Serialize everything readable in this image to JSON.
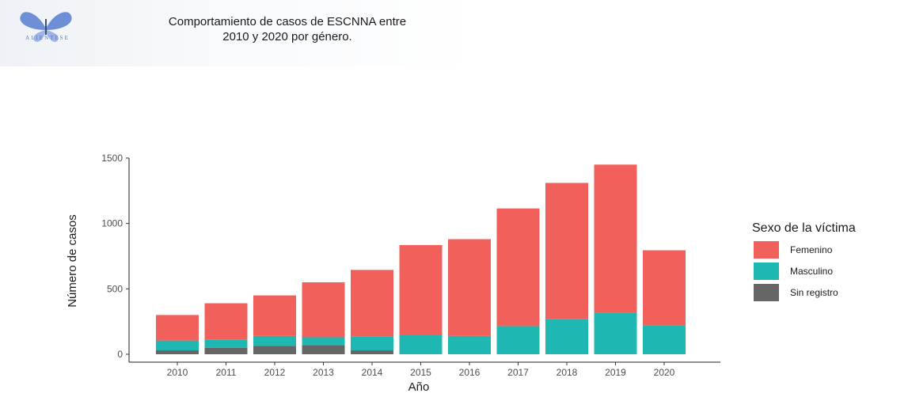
{
  "chart_data": {
    "type": "bar",
    "stacked": true,
    "title": [
      "Comportamiento de casos de ESCNNA entre",
      "2010 y 2020 por género."
    ],
    "xlabel": "Año",
    "ylabel": "Número de casos",
    "ylim": [
      0,
      1560
    ],
    "yticks": [
      0,
      500,
      1000,
      1500
    ],
    "categories": [
      "2010",
      "2011",
      "2012",
      "2013",
      "2014",
      "2015",
      "2016",
      "2017",
      "2018",
      "2019",
      "2020"
    ],
    "legend": {
      "title": "Sexo de la víctima",
      "placement": "right"
    },
    "grid": false,
    "series": [
      {
        "name": "Sin registro",
        "color": "#666666",
        "values": [
          30,
          50,
          65,
          70,
          30,
          0,
          0,
          0,
          0,
          0,
          0
        ]
      },
      {
        "name": "Masculino",
        "color": "#1fb7b1",
        "values": [
          75,
          60,
          75,
          60,
          105,
          145,
          140,
          215,
          270,
          315,
          220
        ]
      },
      {
        "name": "Femenino",
        "color": "#f1605b",
        "values": [
          195,
          280,
          310,
          420,
          510,
          690,
          740,
          900,
          1040,
          1135,
          575
        ]
      }
    ],
    "legend_order": [
      "Femenino",
      "Masculino",
      "Sin registro"
    ]
  },
  "logo": {
    "name": "butterfly-logo",
    "text": "ALIENTESE"
  }
}
